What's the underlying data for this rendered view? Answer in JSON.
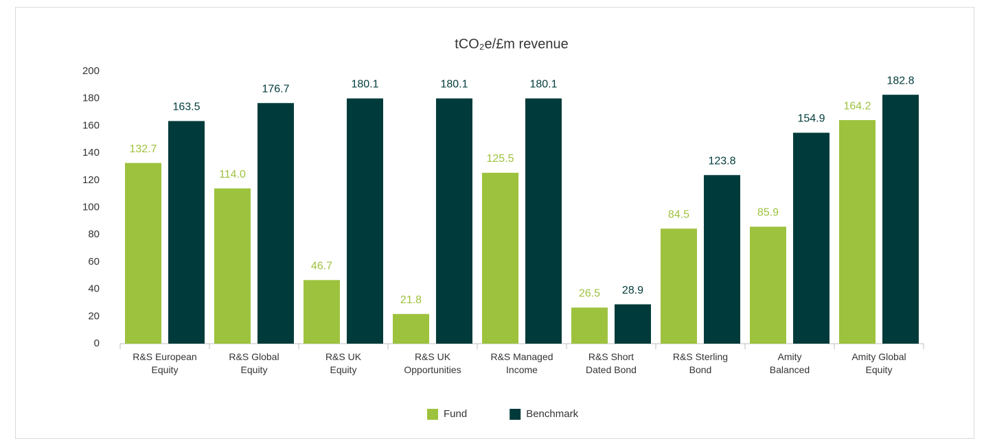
{
  "chart_data": {
    "type": "bar",
    "title": "tCO₂e/£m revenue",
    "categories": [
      "R&S European Equity",
      "R&S Global Equity",
      "R&S UK Equity",
      "R&S UK Opportunities",
      "R&S Managed Income",
      "R&S Short Dated Bond",
      "R&S Sterling Bond",
      "Amity Balanced",
      "Amity Global Equity"
    ],
    "series": [
      {
        "name": "Fund",
        "color": "#9dc23d",
        "values": [
          132.7,
          114.0,
          46.7,
          21.8,
          125.5,
          26.5,
          84.5,
          85.9,
          164.2
        ],
        "value_labels": [
          "132.7",
          "114.0",
          "46.7",
          "21.8",
          "125.5",
          "26.5",
          "84.5",
          "85.9",
          "164.2"
        ]
      },
      {
        "name": "Benchmark",
        "color": "#003a3a",
        "values": [
          163.5,
          176.7,
          180.1,
          180.1,
          180.1,
          28.9,
          123.8,
          154.9,
          182.8
        ],
        "value_labels": [
          "163.5",
          "176.7",
          "180.1",
          "180.1",
          "180.1",
          "28.9",
          "123.8",
          "154.9",
          "182.8"
        ]
      }
    ],
    "ylim": [
      0,
      200
    ],
    "yticks": [
      0,
      20,
      40,
      60,
      80,
      100,
      120,
      140,
      160,
      180,
      200
    ],
    "grid": false,
    "legend": "bottom"
  }
}
